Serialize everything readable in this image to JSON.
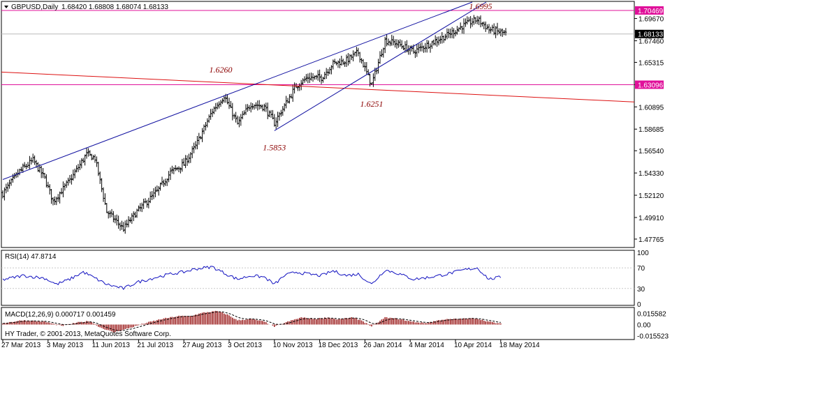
{
  "chart_data": {
    "type": "ohlc",
    "symbol_header": "GBPUSD,Daily",
    "ohlc_header": "1.68420 1.68808 1.68074 1.68133",
    "ylim": [
      1.47,
      1.713
    ],
    "y_ticks": [
      "1.69670",
      "1.67460",
      "1.65315",
      "1.63105",
      "1.60895",
      "1.58685",
      "1.56540",
      "1.54330",
      "1.52120",
      "1.49910",
      "1.47765"
    ],
    "x_ticks": [
      "27 Mar 2013",
      "3 May 2013",
      "11 Jun 2013",
      "21 Jul 2013",
      "27 Aug 2013",
      "3 Oct 2013",
      "10 Nov 2013",
      "18 Dec 2013",
      "26 Jan 2014",
      "4 Mar 2014",
      "10 Apr 2014",
      "18 May 2014"
    ],
    "tick_positions": [
      0,
      27,
      54,
      81,
      108,
      135,
      162,
      189,
      216,
      243,
      270,
      297
    ],
    "x_range": [
      0,
      300
    ],
    "last_price": "1.68133",
    "horizontal_levels": [
      {
        "label": "1.70469",
        "value": 1.70469,
        "color": "#e0109a"
      },
      {
        "label": "1.63096",
        "value": 1.63096,
        "color": "#e0109a"
      }
    ],
    "red_trendline": {
      "color": "#dd1111",
      "from": [
        0,
        1.6435
      ],
      "to": [
        300,
        1.6138
      ]
    },
    "channel_upper": {
      "color": "#1010a0",
      "from": [
        0,
        1.5368
      ],
      "to": [
        280,
        1.713
      ]
    },
    "channel_lower": {
      "color": "#1010a0",
      "from": [
        162,
        1.5853
      ],
      "to": [
        280,
        1.713
      ]
    },
    "annotations": [
      {
        "text": "1.6995",
        "x": 285,
        "y": 1.706
      },
      {
        "text": "1.6260",
        "x": 130,
        "y": 1.643
      },
      {
        "text": "1.5853",
        "x": 162,
        "y": 1.566
      },
      {
        "text": "1.6251",
        "x": 220,
        "y": 1.609
      }
    ],
    "anchors": [
      [
        0,
        1.523
      ],
      [
        10,
        1.545
      ],
      [
        18,
        1.556
      ],
      [
        25,
        1.538
      ],
      [
        30,
        1.515
      ],
      [
        40,
        1.536
      ],
      [
        50,
        1.562
      ],
      [
        55,
        1.558
      ],
      [
        62,
        1.505
      ],
      [
        72,
        1.488
      ],
      [
        80,
        1.505
      ],
      [
        92,
        1.525
      ],
      [
        100,
        1.544
      ],
      [
        108,
        1.552
      ],
      [
        115,
        1.57
      ],
      [
        125,
        1.605
      ],
      [
        132,
        1.62
      ],
      [
        140,
        1.592
      ],
      [
        148,
        1.612
      ],
      [
        156,
        1.609
      ],
      [
        162,
        1.593
      ],
      [
        168,
        1.61
      ],
      [
        175,
        1.63
      ],
      [
        182,
        1.638
      ],
      [
        190,
        1.638
      ],
      [
        197,
        1.652
      ],
      [
        205,
        1.655
      ],
      [
        212,
        1.663
      ],
      [
        220,
        1.631
      ],
      [
        228,
        1.675
      ],
      [
        235,
        1.672
      ],
      [
        245,
        1.664
      ],
      [
        255,
        1.672
      ],
      [
        265,
        1.68
      ],
      [
        275,
        1.69
      ],
      [
        283,
        1.696
      ],
      [
        290,
        1.686
      ],
      [
        297,
        1.683
      ],
      [
        300,
        1.6813
      ]
    ],
    "rsi": {
      "label": "RSI(14) 47.8714",
      "ylim": [
        0,
        100
      ],
      "ticks": [
        "100",
        "70",
        "30",
        "0"
      ],
      "anchors": [
        [
          0,
          47
        ],
        [
          12,
          55
        ],
        [
          25,
          50
        ],
        [
          32,
          38
        ],
        [
          40,
          48
        ],
        [
          48,
          62
        ],
        [
          55,
          50
        ],
        [
          62,
          38
        ],
        [
          72,
          30
        ],
        [
          80,
          42
        ],
        [
          92,
          52
        ],
        [
          100,
          58
        ],
        [
          108,
          62
        ],
        [
          115,
          68
        ],
        [
          125,
          72
        ],
        [
          132,
          60
        ],
        [
          140,
          48
        ],
        [
          148,
          55
        ],
        [
          156,
          52
        ],
        [
          162,
          38
        ],
        [
          168,
          55
        ],
        [
          175,
          62
        ],
        [
          182,
          58
        ],
        [
          190,
          55
        ],
        [
          197,
          64
        ],
        [
          205,
          55
        ],
        [
          212,
          58
        ],
        [
          220,
          38
        ],
        [
          228,
          66
        ],
        [
          235,
          60
        ],
        [
          245,
          48
        ],
        [
          255,
          52
        ],
        [
          265,
          58
        ],
        [
          275,
          66
        ],
        [
          283,
          70
        ],
        [
          290,
          48
        ],
        [
          297,
          52
        ]
      ]
    },
    "macd": {
      "label": "MACD(12,26,9) 0.000717 0.001459",
      "ylim": [
        -0.0202,
        0.0222
      ],
      "ticks": [
        "0.015582",
        "0.00",
        "-0.015523"
      ],
      "anchors": [
        [
          0,
          0.002
        ],
        [
          12,
          0.006
        ],
        [
          25,
          0.004
        ],
        [
          35,
          -0.002
        ],
        [
          45,
          0.003
        ],
        [
          52,
          0.005
        ],
        [
          58,
          -0.004
        ],
        [
          66,
          -0.011
        ],
        [
          74,
          -0.006
        ],
        [
          85,
          0.002
        ],
        [
          95,
          0.008
        ],
        [
          105,
          0.012
        ],
        [
          112,
          0.012
        ],
        [
          120,
          0.017
        ],
        [
          128,
          0.019
        ],
        [
          134,
          0.014
        ],
        [
          140,
          0.006
        ],
        [
          148,
          0.008
        ],
        [
          156,
          0.004
        ],
        [
          162,
          -0.003
        ],
        [
          170,
          0.004
        ],
        [
          178,
          0.01
        ],
        [
          186,
          0.008
        ],
        [
          194,
          0.01
        ],
        [
          200,
          0.007
        ],
        [
          208,
          0.01
        ],
        [
          214,
          0.006
        ],
        [
          220,
          -0.003
        ],
        [
          228,
          0.01
        ],
        [
          236,
          0.008
        ],
        [
          244,
          0.004
        ],
        [
          252,
          0.002
        ],
        [
          262,
          0.007
        ],
        [
          272,
          0.008
        ],
        [
          282,
          0.009
        ],
        [
          290,
          0.004
        ],
        [
          297,
          0.001
        ]
      ]
    }
  },
  "footer": {
    "copyright": "HY Trader, © 2001-2013, MetaQuotes Software Corp."
  }
}
